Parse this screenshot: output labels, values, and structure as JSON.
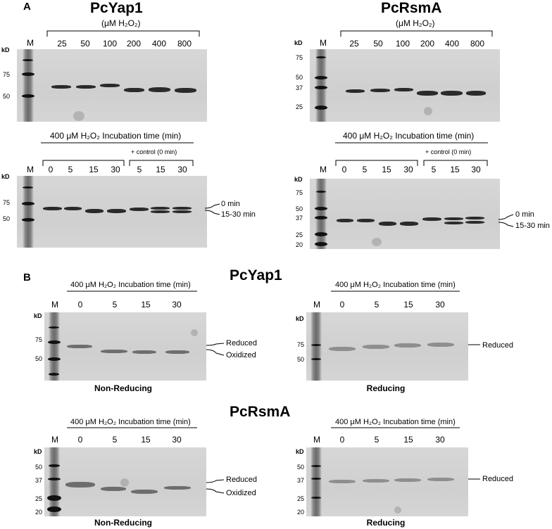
{
  "panel_a": {
    "label": "A",
    "left_title": "PcYap1",
    "right_title": "PcRsmA",
    "concentration_header": "(μM H₂O₂)",
    "ladder_label": "M",
    "kd_label": "kD",
    "concentrations": [
      "25",
      "50",
      "100",
      "200",
      "400",
      "800"
    ],
    "time_header": "400 μM H₂O₂ Incubation time (min)",
    "control_label": "+ control (0 min)",
    "times": [
      "0",
      "5",
      "15",
      "30",
      "5",
      "15",
      "30"
    ],
    "yap1_markers_top": [
      "75",
      "50"
    ],
    "rsma_markers_top": [
      "75",
      "50",
      "37",
      "25"
    ],
    "yap1_markers_bottom": [
      "75",
      "50"
    ],
    "rsma_markers_bottom": [
      "75",
      "50",
      "37",
      "25",
      "20"
    ],
    "band_label_upper": "0 min",
    "band_label_lower": "15-30 min"
  },
  "panel_b": {
    "label": "B",
    "yap1_title": "PcYap1",
    "rsma_title": "PcRsmA",
    "time_header": "400 μM H₂O₂ Incubation time (min)",
    "ladder_label": "M",
    "kd_label": "kD",
    "times": [
      "0",
      "5",
      "15",
      "30"
    ],
    "yap1_markers": [
      "75",
      "50"
    ],
    "rsma_markers": [
      "50",
      "37",
      "25",
      "20"
    ],
    "reduced_label": "Reduced",
    "oxidized_label": "Oxidized",
    "non_reducing_caption": "Non-Reducing",
    "reducing_caption": "Reducing"
  }
}
